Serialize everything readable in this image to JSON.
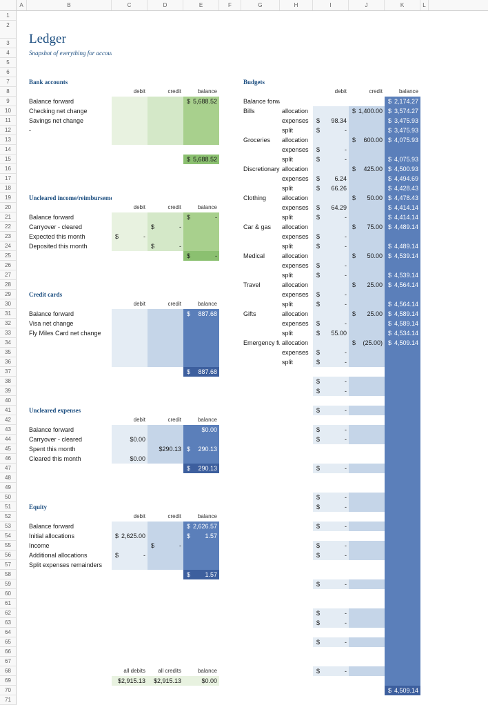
{
  "columns": [
    "A",
    "B",
    "C",
    "D",
    "E",
    "F",
    "G",
    "H",
    "I",
    "J",
    "K",
    "L"
  ],
  "row_count": 71,
  "title": "Ledger",
  "subtitle": "Snapshot of everything for accounting geeks",
  "colhdr": {
    "debit": "debit",
    "credit": "credit",
    "balance": "balance"
  },
  "bank": {
    "header": "Bank accounts",
    "rows": [
      {
        "label": "Balance forward",
        "debit": "",
        "credit": "",
        "balance": "5,688.52",
        "balSym": "$"
      },
      {
        "label": "Checking net change",
        "debit": "",
        "credit": "",
        "balance": ""
      },
      {
        "label": "Savings net change",
        "debit": "",
        "credit": "",
        "balance": ""
      },
      {
        "label": "-",
        "debit": "",
        "credit": "",
        "balance": ""
      },
      {
        "label": "",
        "debit": "",
        "credit": "",
        "balance": ""
      }
    ],
    "total": "5,688.52",
    "totalSym": "$"
  },
  "uncleared_income": {
    "header": "Uncleared income/reimbursements",
    "rows": [
      {
        "label": "Balance forward",
        "debit": "",
        "credit": "",
        "balance": "-",
        "balSym": "$"
      },
      {
        "label": "Carryover - cleared",
        "debit": "",
        "credit": "-",
        "creditSym": "$",
        "balance": ""
      },
      {
        "label": "Expected this month",
        "debit": "-",
        "debitSym": "$",
        "credit": "",
        "balance": ""
      },
      {
        "label": "Deposited this month",
        "debit": "",
        "credit": "-",
        "creditSym": "$",
        "balance": ""
      }
    ],
    "total": "-",
    "totalSym": "$"
  },
  "credit_cards": {
    "header": "Credit cards",
    "rows": [
      {
        "label": "Balance forward",
        "balance": "887.68",
        "balSym": "$"
      },
      {
        "label": "Visa net change"
      },
      {
        "label": "Fly Miles Card net change"
      },
      {
        "label": ""
      },
      {
        "label": ""
      },
      {
        "label": ""
      }
    ],
    "total": "887.68",
    "totalSym": "$"
  },
  "uncleared_exp": {
    "header": "Uncleared expenses",
    "rows": [
      {
        "label": "Balance forward",
        "balance": "$0.00"
      },
      {
        "label": "Carryover - cleared",
        "debit": "$0.00",
        "balSym": "$"
      },
      {
        "label": "Spent this month",
        "credit": "$290.13",
        "balance": "290.13",
        "balSym": "$"
      },
      {
        "label": "Cleared this month",
        "debit": "$0.00"
      }
    ],
    "total": "290.13",
    "totalSym": "$"
  },
  "equity": {
    "header": "Equity",
    "rows": [
      {
        "label": "Balance forward",
        "balance": "2,626.57",
        "balSym": "$"
      },
      {
        "label": "Initial allocations",
        "debit": "2,625.00",
        "debitSym": "$",
        "balance": "1.57",
        "balSym": "$"
      },
      {
        "label": "Income",
        "credit": "-",
        "creditSym": "$"
      },
      {
        "label": "Additional allocations",
        "debit": "-",
        "debitSym": "$"
      },
      {
        "label": "Split expenses remainders"
      }
    ],
    "total": "1.57",
    "totalSym": "$"
  },
  "grand": {
    "labels": {
      "debits": "all debits",
      "credits": "all credits",
      "balance": "balance"
    },
    "debits": "$2,915.13",
    "credits": "$2,915.13",
    "balance": "$0.00"
  },
  "budgets": {
    "header": "Budgets",
    "balance_forward": "Balance forward",
    "bf_balance": "2,174.27",
    "categories": [
      {
        "name": "Bills",
        "alloc_credit": "1,400.00",
        "allocSym": "$",
        "alloc_bal": "3,574.27",
        "exp_debit": "98.34",
        "exp_bal": "3,475.93",
        "split_debit": "-",
        "split_bal": "3,475.93"
      },
      {
        "name": "Groceries",
        "alloc_credit": "600.00",
        "allocSym": "$",
        "alloc_bal": "4,075.93",
        "exp_debit": "-",
        "exp_bal": "",
        "split_debit": "-",
        "split_bal": "4,075.93"
      },
      {
        "name": "Discretionary",
        "alloc_credit": "425.00",
        "allocSym": "$",
        "alloc_bal": "4,500.93",
        "exp_debit": "6.24",
        "exp_bal": "4,494.69",
        "split_debit": "66.26",
        "split_bal": "4,428.43"
      },
      {
        "name": "Clothing",
        "alloc_credit": "50.00",
        "allocSym": "$",
        "alloc_bal": "4,478.43",
        "exp_debit": "64.29",
        "exp_bal": "4,414.14",
        "split_debit": "-",
        "split_bal": "4,414.14"
      },
      {
        "name": "Car & gas",
        "alloc_credit": "75.00",
        "allocSym": "$",
        "alloc_bal": "4,489.14",
        "exp_debit": "-",
        "exp_bal": "",
        "split_debit": "-",
        "split_bal": "4,489.14"
      },
      {
        "name": "Medical",
        "alloc_credit": "50.00",
        "allocSym": "$",
        "alloc_bal": "4,539.14",
        "exp_debit": "-",
        "exp_bal": "",
        "split_debit": "-",
        "split_bal": "4,539.14"
      },
      {
        "name": "Travel",
        "alloc_credit": "25.00",
        "allocSym": "$",
        "alloc_bal": "4,564.14",
        "exp_debit": "-",
        "exp_bal": "",
        "split_debit": "-",
        "split_bal": "4,564.14"
      },
      {
        "name": "Gifts",
        "alloc_credit": "25.00",
        "allocSym": "$",
        "alloc_bal": "4,589.14",
        "exp_debit": "-",
        "exp_bal": "4,589.14",
        "split_debit": "55.00",
        "split_bal": "4,534.14"
      },
      {
        "name": "Emergency fund",
        "alloc_credit": "(25.00)",
        "allocSym": "$",
        "alloc_bal": "4,509.14",
        "exp_debit": "-",
        "exp_bal": "",
        "split_debit": "-",
        "split_bal": ""
      }
    ],
    "sub": {
      "allocation": "allocation",
      "expenses": "expenses",
      "split": "split"
    },
    "extras_count": 15,
    "total": "4,509.14"
  },
  "colors": {
    "green_lt": "#e8f2e0",
    "green_md": "#d4e8c8",
    "green_dk": "#a8d08d",
    "green_dker": "#8bc070",
    "blue_lt": "#e4ecf4",
    "blue_md": "#c5d5e8",
    "blue_dk": "#8faadc",
    "blue_dker": "#5b7fba",
    "blue_vdk": "#3d5f9e",
    "hdr_text": "#1c4e80"
  }
}
